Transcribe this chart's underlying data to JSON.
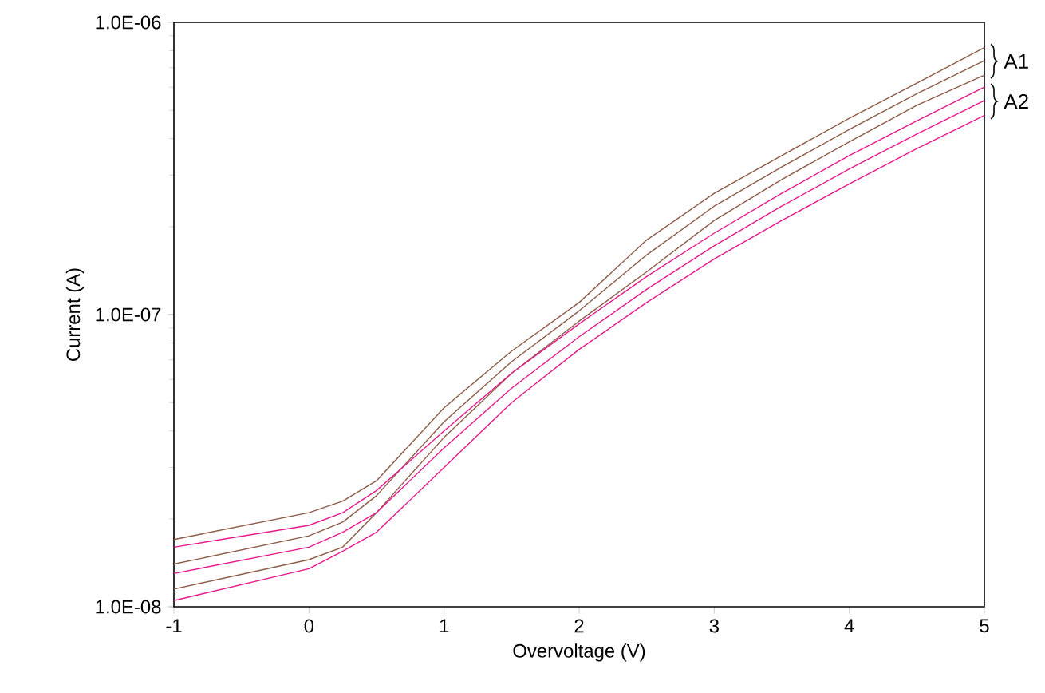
{
  "chart_data": {
    "type": "line",
    "xlabel": "Overvoltage (V)",
    "ylabel": "Current (A)",
    "log": "y",
    "x": [
      -1,
      0,
      0.25,
      0.5,
      1,
      1.5,
      2,
      2.5,
      3,
      3.5,
      4,
      4.5,
      5
    ],
    "xlim": [
      -1,
      5
    ],
    "xticks": [
      -1,
      0,
      1,
      2,
      3,
      4,
      5
    ],
    "ylim": [
      1e-08,
      1e-06
    ],
    "yticks": [
      {
        "value": 1e-08,
        "label": "1.0E-08"
      },
      {
        "value": 1e-07,
        "label": "1.0E-07"
      },
      {
        "value": 1e-06,
        "label": "1.0E-06"
      }
    ],
    "series": [
      {
        "color": "#8c5a46",
        "values": [
          1.7e-08,
          2.1e-08,
          2.3e-08,
          2.7e-08,
          4.8e-08,
          7.5e-08,
          1.1e-07,
          1.8e-07,
          2.6e-07,
          3.5e-07,
          4.7e-07,
          6.2e-07,
          8.2e-07
        ]
      },
      {
        "color": "#8c5a46",
        "values": [
          1.4e-08,
          1.75e-08,
          1.95e-08,
          2.4e-08,
          4.3e-08,
          6.9e-08,
          1.03e-07,
          1.6e-07,
          2.35e-07,
          3.2e-07,
          4.3e-07,
          5.7e-07,
          7.4e-07
        ]
      },
      {
        "color": "#8c5a46",
        "values": [
          1.15e-08,
          1.45e-08,
          1.6e-08,
          2.1e-08,
          3.8e-08,
          6.3e-08,
          9.5e-08,
          1.4e-07,
          2.1e-07,
          2.9e-07,
          3.9e-07,
          5.2e-07,
          6.6e-07
        ]
      },
      {
        "color": "#e6188c",
        "values": [
          1.6e-08,
          1.9e-08,
          2.1e-08,
          2.5e-08,
          4e-08,
          6.3e-08,
          9.3e-08,
          1.35e-07,
          1.9e-07,
          2.6e-07,
          3.5e-07,
          4.6e-07,
          6e-07
        ]
      },
      {
        "color": "#e6188c",
        "values": [
          1.3e-08,
          1.6e-08,
          1.8e-08,
          2.1e-08,
          3.5e-08,
          5.6e-08,
          8.4e-08,
          1.22e-07,
          1.72e-07,
          2.35e-07,
          3.15e-07,
          4.15e-07,
          5.4e-07
        ]
      },
      {
        "color": "#e6188c",
        "values": [
          1.05e-08,
          1.35e-08,
          1.55e-08,
          1.8e-08,
          3e-08,
          5e-08,
          7.6e-08,
          1.1e-07,
          1.55e-07,
          2.1e-07,
          2.8e-07,
          3.7e-07,
          4.8e-07
        ]
      }
    ],
    "annotations": [
      "A1",
      "A2"
    ]
  }
}
